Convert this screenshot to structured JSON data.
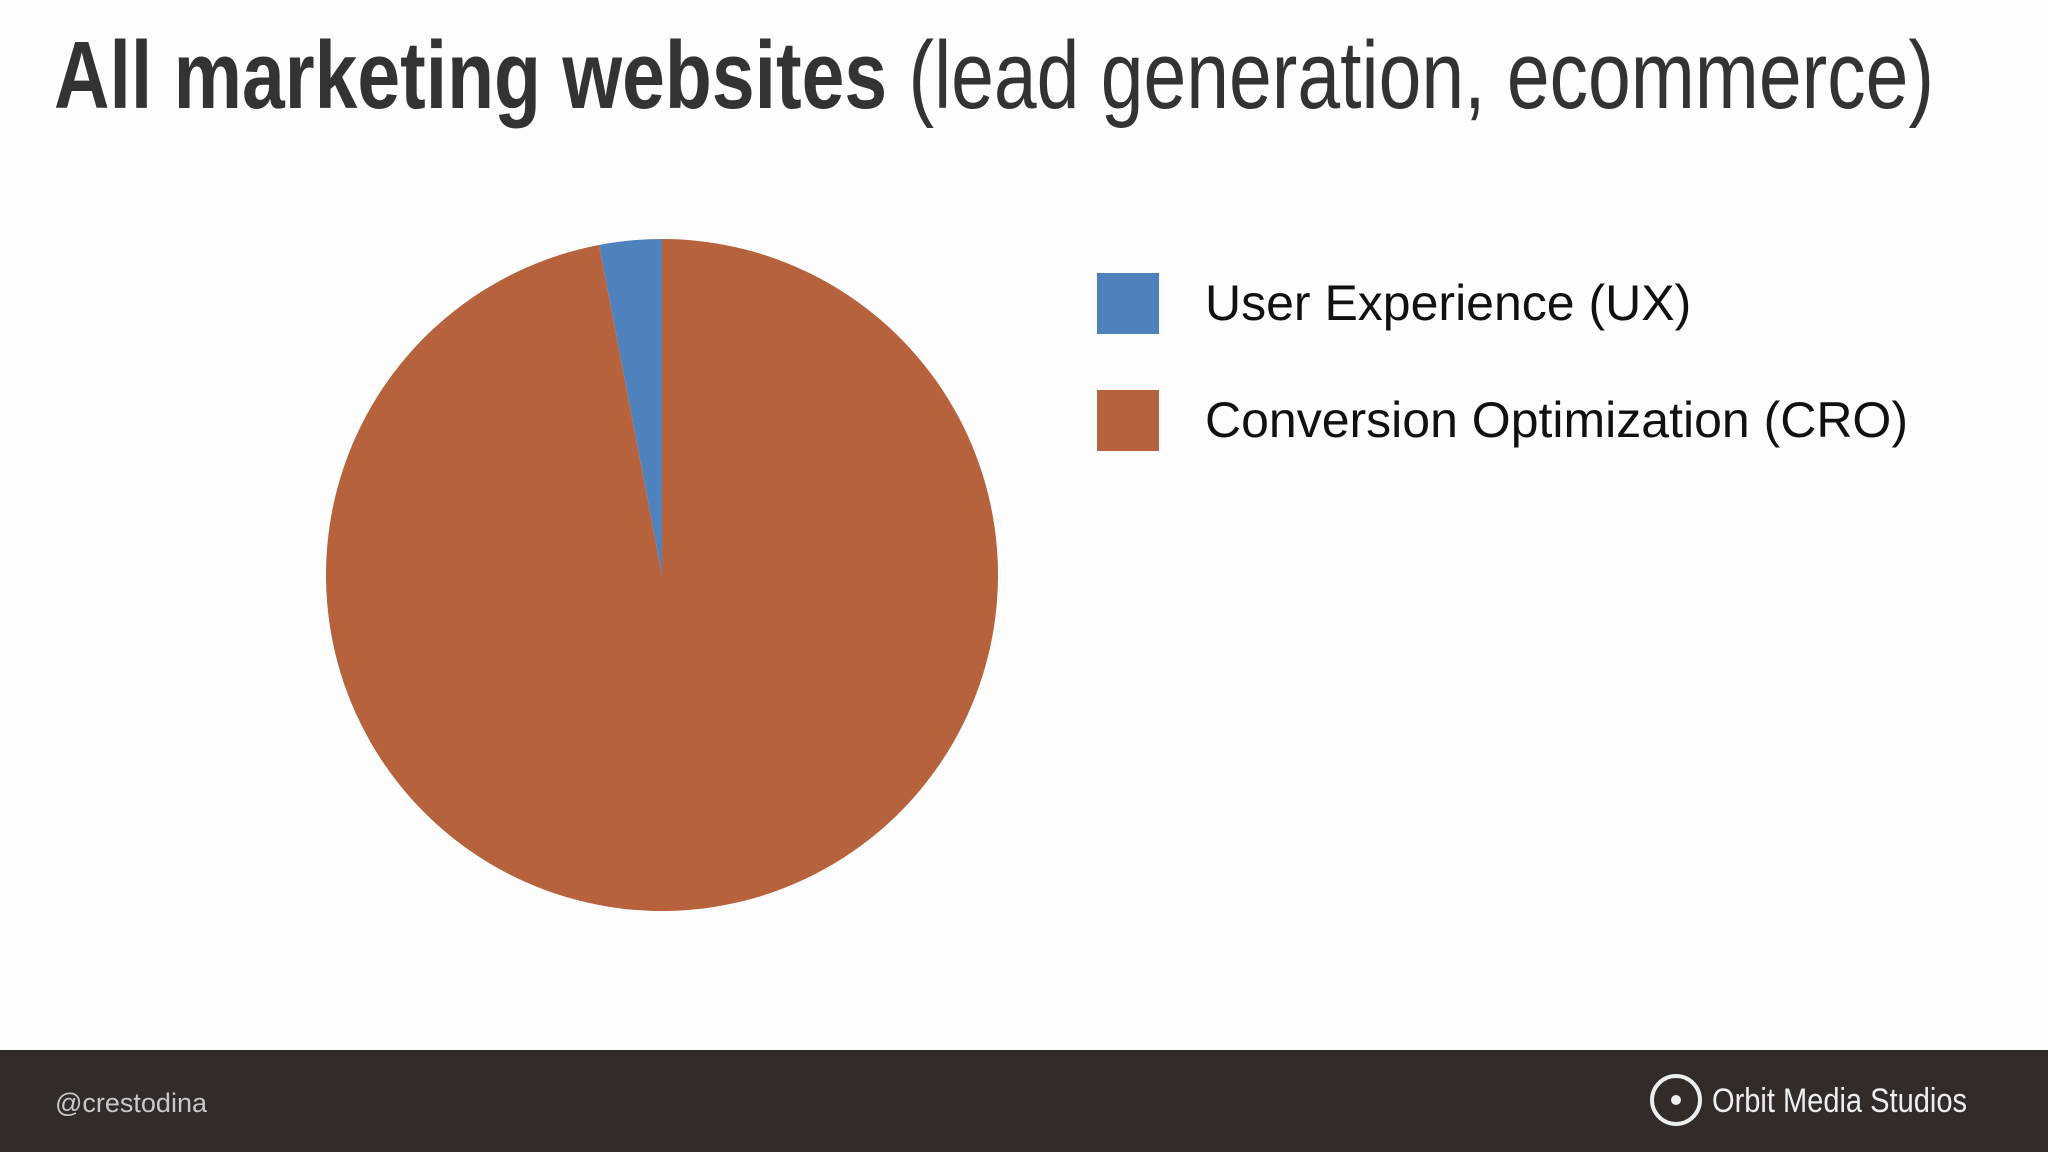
{
  "chart_data": {
    "type": "pie",
    "title": {
      "bold": "All marketing websites",
      "normal": "(lead generation, ecommerce)"
    },
    "categories": [
      "User Experience (UX)",
      "Conversion Optimization (CRO)"
    ],
    "values": [
      3,
      97
    ],
    "colors": [
      "#4f81bd",
      "#b5623d"
    ]
  },
  "footer": {
    "handle": "@crestodina",
    "brand": "Orbit Media Studios"
  }
}
